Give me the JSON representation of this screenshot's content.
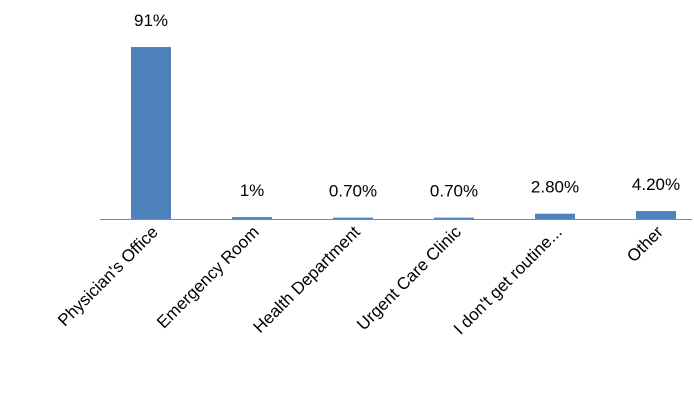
{
  "chart_data": {
    "type": "bar",
    "categories": [
      "Physician's Office",
      "Emergency Room",
      "Health Department",
      "Urgent Care Clinic",
      "I don't get routine...",
      "Other"
    ],
    "values": [
      91,
      1,
      0.7,
      0.7,
      2.8,
      4.2
    ],
    "value_labels": [
      "91%",
      "1%",
      "0.70%",
      "0.70%",
      "2.80%",
      "4.20%"
    ],
    "color": "#4f81bd"
  }
}
